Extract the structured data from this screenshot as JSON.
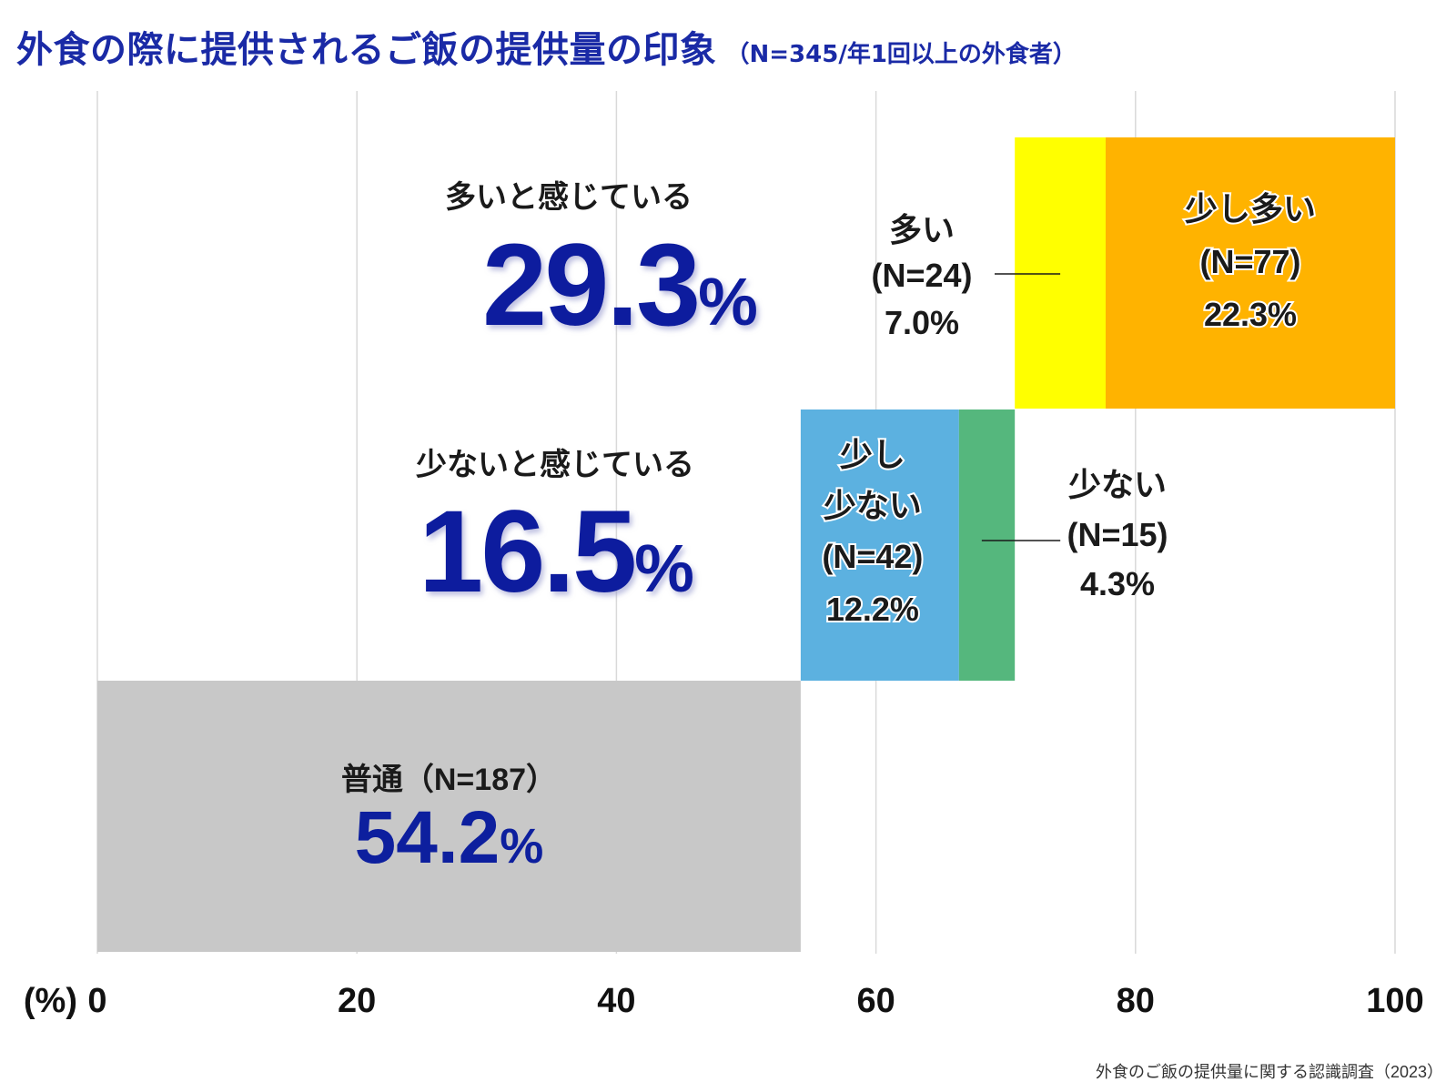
{
  "title": {
    "main": "外食の際に提供されるご飯の提供量の印象",
    "sub": "（N=345/年1回以上の外食者）"
  },
  "source": "外食のご飯の提供量に関する認識調査（2023）",
  "colors": {
    "title": "#1a2aa6",
    "big_number": "#0d1f9e",
    "gridline": "#d9d9d9",
    "futsu": "#c8c8c8",
    "sukoshi_sukunai": "#5cb1e0",
    "sukunai": "#55b77d",
    "ooi": "#ffff00",
    "sukoshi_ooi": "#ffb300"
  },
  "chart_data": {
    "type": "bar",
    "orientation": "horizontal-stacked-waterfall",
    "axis_unit_label": "(%)",
    "xlim": [
      0,
      100
    ],
    "x_ticks": [
      "0",
      "20",
      "40",
      "60",
      "80",
      "100"
    ],
    "grid": true,
    "segments": [
      {
        "key": "futsu",
        "row": 0,
        "start": 0,
        "value": 54.2,
        "color_key": "futsu",
        "label": "普通（N=187）",
        "pct": "54.2",
        "pct_unit": "%"
      },
      {
        "key": "sukoshi_sukunai",
        "row": 1,
        "start": 54.2,
        "value": 12.2,
        "color_key": "sukoshi_sukunai",
        "label_lines": [
          "少し",
          "少ない",
          "(N=42)",
          "12.2%"
        ]
      },
      {
        "key": "sukunai",
        "row": 1,
        "start": 66.4,
        "value": 4.3,
        "color_key": "sukunai",
        "label_lines": [
          "少ない",
          "(N=15)",
          "4.3%"
        ]
      },
      {
        "key": "ooi",
        "row": 2,
        "start": 70.7,
        "value": 7.0,
        "color_key": "ooi",
        "label_lines": [
          "多い",
          "(N=24)",
          "7.0%"
        ]
      },
      {
        "key": "sukoshi_ooi",
        "row": 2,
        "start": 77.7,
        "value": 22.3,
        "color_key": "sukoshi_ooi",
        "label_lines": [
          "少し多い",
          "(N=77)",
          "22.3%"
        ]
      }
    ],
    "summaries": [
      {
        "key": "ooi_total",
        "row": 2,
        "label": "多いと感じている",
        "number": "29.3",
        "unit": "%"
      },
      {
        "key": "sukunai_total",
        "row": 1,
        "label": "少ないと感じている",
        "number": "16.5",
        "unit": "%"
      }
    ]
  }
}
